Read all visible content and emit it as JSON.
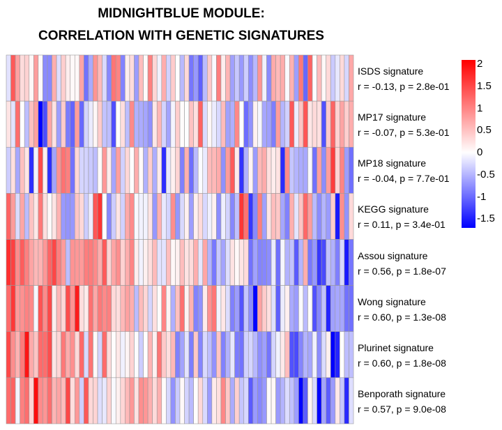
{
  "chart_data": {
    "type": "heatmap",
    "title_line1": "MIDNIGHTBLUE MODULE:",
    "title_line2": "CORRELATION WITH GENETIC SIGNATURES",
    "rows": [
      {
        "name": "ISDS signature",
        "stat": "r = -0.13, p = 2.8e-01",
        "r": -0.13
      },
      {
        "name": "MP17 signature",
        "stat": "r = -0.07, p = 5.3e-01",
        "r": -0.07
      },
      {
        "name": "MP18 signature",
        "stat": "r = -0.04, p = 7.7e-01",
        "r": -0.04
      },
      {
        "name": "KEGG signature",
        "stat": "r = 0.11, p = 3.4e-01",
        "r": 0.11
      },
      {
        "name": "Assou signature",
        "stat": "r = 0.56, p = 1.8e-07",
        "r": 0.56
      },
      {
        "name": "Wong signature",
        "stat": "r = 0.60, p = 1.3e-08",
        "r": 0.6
      },
      {
        "name": "Plurinet signature",
        "stat": "r = 0.60, p = 1.8e-08",
        "r": 0.6
      },
      {
        "name": "Benporath signature",
        "stat": "r = 0.57, p = 9.0e-08",
        "r": 0.57
      }
    ],
    "n_columns": 76,
    "color_scale": {
      "min": -1.7,
      "max": 2.1,
      "low": "#0000ff",
      "mid": "#ffffff",
      "high": "#ff0000"
    },
    "legend_ticks": [
      "2",
      "1.5",
      "1",
      "0.5",
      "0",
      "-0.5",
      "-1",
      "-1.5"
    ],
    "legend_tick_values": [
      2,
      1.5,
      1,
      0.5,
      0,
      -0.5,
      -1,
      -1.5
    ]
  }
}
